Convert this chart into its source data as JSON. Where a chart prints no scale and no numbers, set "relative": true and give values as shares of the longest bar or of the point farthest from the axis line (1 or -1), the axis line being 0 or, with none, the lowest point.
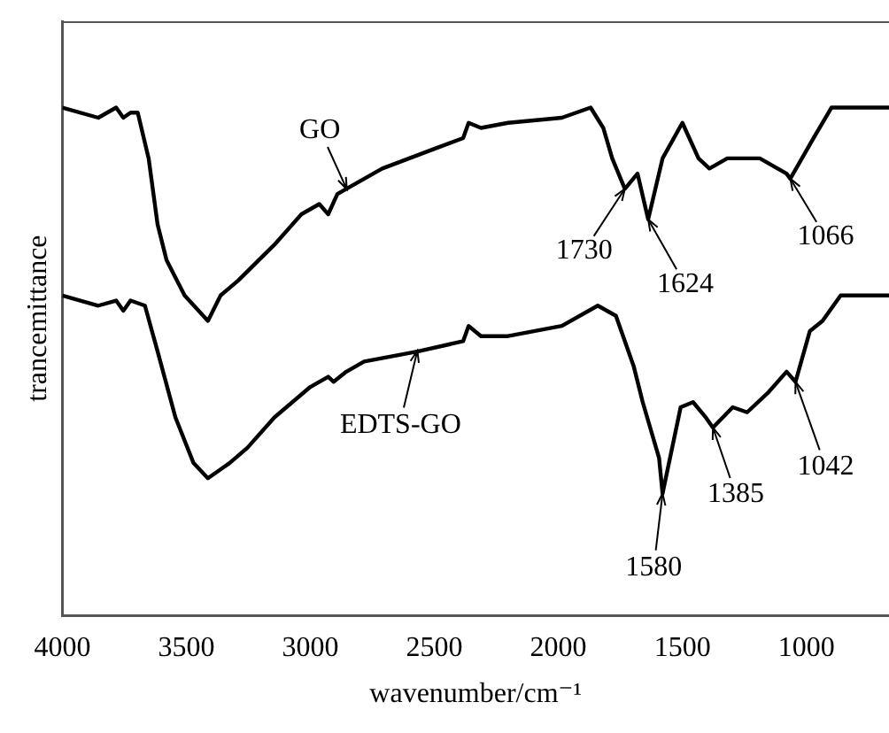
{
  "chart_data": {
    "type": "line",
    "relative": true,
    "xlabel": "wavenumber/cm⁻¹",
    "ylabel": "trancemittance",
    "xlim": [
      4000,
      667
    ],
    "xticks": [
      4000,
      3500,
      3000,
      2500,
      2000,
      1500,
      1000
    ],
    "grid": false,
    "marker": "none",
    "line_style": "solid",
    "series": [
      {
        "name": "GO",
        "color": "#000000",
        "x": [
          4000,
          3855,
          3783,
          3754,
          3725,
          3696,
          3652,
          3616,
          3580,
          3507,
          3413,
          3362,
          3290,
          3145,
          3036,
          2964,
          2928,
          2891,
          2855,
          2710,
          2493,
          2384,
          2362,
          2312,
          2203,
          1986,
          1870,
          1819,
          1783,
          1732,
          1681,
          1638,
          1580,
          1500,
          1435,
          1391,
          1319,
          1225,
          1188,
          1080,
          1065,
          971,
          899,
          754,
          667
        ],
        "values": [
          1.0,
          0.98,
          1.0,
          0.98,
          0.99,
          0.99,
          0.9,
          0.77,
          0.7,
          0.63,
          0.58,
          0.63,
          0.66,
          0.73,
          0.79,
          0.81,
          0.79,
          0.83,
          0.84,
          0.88,
          0.92,
          0.94,
          0.97,
          0.96,
          0.97,
          0.98,
          1.0,
          0.96,
          0.9,
          0.84,
          0.87,
          0.78,
          0.9,
          0.97,
          0.9,
          0.88,
          0.9,
          0.9,
          0.9,
          0.87,
          0.86,
          0.94,
          1.0,
          1.0,
          1.0
        ]
      },
      {
        "name": "EDTS-GO",
        "color": "#000000",
        "x": [
          4000,
          3855,
          3783,
          3754,
          3725,
          3667,
          3616,
          3544,
          3471,
          3413,
          3326,
          3254,
          3145,
          3000,
          2928,
          2906,
          2855,
          2783,
          2565,
          2384,
          2362,
          2312,
          2203,
          1986,
          1841,
          1768,
          1696,
          1660,
          1594,
          1580,
          1507,
          1457,
          1406,
          1377,
          1297,
          1239,
          1152,
          1080,
          1044,
          986,
          935,
          862,
          667
        ],
        "values": [
          0.63,
          0.61,
          0.62,
          0.6,
          0.62,
          0.61,
          0.52,
          0.39,
          0.3,
          0.27,
          0.3,
          0.33,
          0.39,
          0.45,
          0.47,
          0.46,
          0.48,
          0.5,
          0.52,
          0.54,
          0.57,
          0.55,
          0.55,
          0.57,
          0.61,
          0.59,
          0.49,
          0.42,
          0.31,
          0.24,
          0.41,
          0.42,
          0.39,
          0.37,
          0.41,
          0.4,
          0.44,
          0.48,
          0.46,
          0.56,
          0.58,
          0.63,
          0.63
        ]
      }
    ],
    "annotations": [
      {
        "text": "1730",
        "x": 1732,
        "y": 0.84
      },
      {
        "text": "1624",
        "x": 1638,
        "y": 0.78
      },
      {
        "text": "1066",
        "x": 1065,
        "y": 0.86
      },
      {
        "text": "1580",
        "x": 1580,
        "y": 0.24
      },
      {
        "text": "1385",
        "x": 1377,
        "y": 0.37
      },
      {
        "text": "1042",
        "x": 1044,
        "y": 0.46
      }
    ]
  }
}
